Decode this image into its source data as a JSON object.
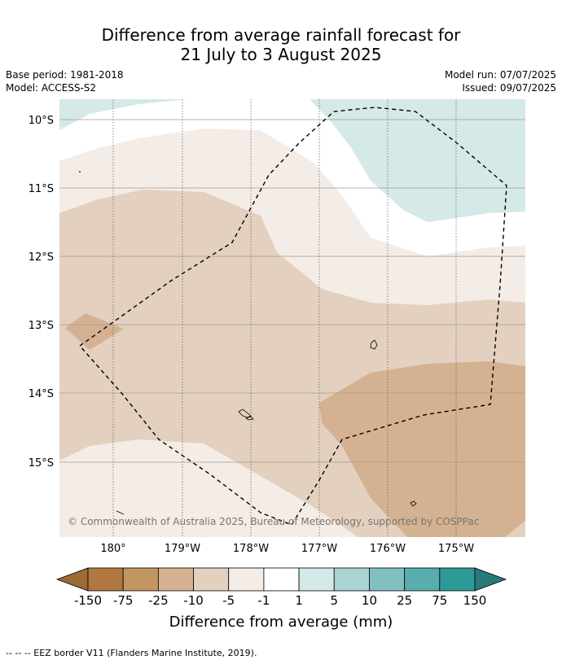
{
  "title": {
    "line1": "Difference from average rainfall forecast for",
    "line2": "21 July to 3 August 2025"
  },
  "meta": {
    "base_period": "Base period: 1981-2018",
    "model": "Model: ACCESS-S2",
    "model_run": "Model run: 07/07/2025",
    "issued": "Issued: 09/07/2025"
  },
  "map": {
    "lat_labels": [
      "10°S",
      "11°S",
      "12°S",
      "13°S",
      "14°S",
      "15°S"
    ],
    "lon_labels": [
      "180°",
      "179°W",
      "178°W",
      "177°W",
      "176°W",
      "175°W"
    ],
    "copyright": "© Commonwealth of Australia 2025, Bureau of Meteorology, supported by COSPPac"
  },
  "legend": {
    "title": "Difference from average (mm)",
    "ticks": [
      "-150",
      "-75",
      "-25",
      "-10",
      "-5",
      "-1",
      "1",
      "5",
      "10",
      "25",
      "75",
      "150"
    ],
    "colors": [
      "#9b6a37",
      "#b07840",
      "#c29562",
      "#d4b291",
      "#e3d0bf",
      "#f4ece7",
      "#ffffff",
      "#d4e9e8",
      "#a9d4d4",
      "#82c0c0",
      "#59adad",
      "#2e9a97",
      "#277a78"
    ]
  },
  "footnote": "-- -- -- EEZ border V11 (Flanders Marine Institute, 2019)."
}
